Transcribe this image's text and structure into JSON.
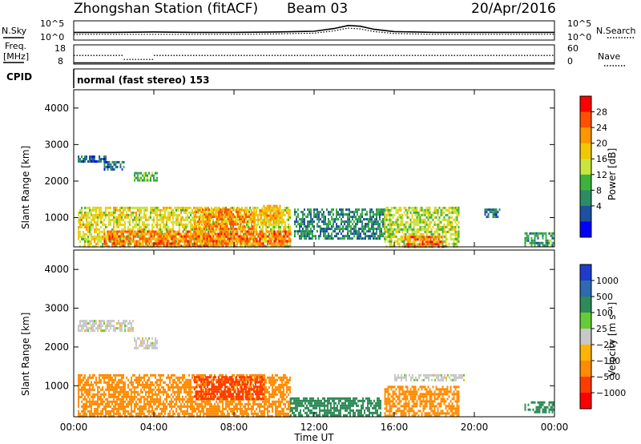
{
  "header": {
    "station": "Zhongshan Station (fitACF)",
    "beam": "Beam 03",
    "date": "20/Apr/2016"
  },
  "noise_panel": {
    "left_label": "N.Sky",
    "left_ticks": [
      "10^5",
      "10^0"
    ],
    "right_label": "N.Search",
    "right_ticks": [
      "10^5",
      "10^0"
    ],
    "sky_series": [
      [
        0,
        2.0
      ],
      [
        2,
        2.0
      ],
      [
        4,
        2.1
      ],
      [
        6,
        2.0
      ],
      [
        8,
        2.0
      ],
      [
        10,
        2.1
      ],
      [
        12,
        2.3
      ],
      [
        13,
        3.0
      ],
      [
        13.7,
        3.8
      ],
      [
        14.3,
        3.6
      ],
      [
        15,
        2.8
      ],
      [
        16,
        2.2
      ],
      [
        18,
        2.0
      ],
      [
        20,
        2.0
      ],
      [
        22,
        2.0
      ],
      [
        24,
        2.0
      ]
    ],
    "search_series": [
      [
        0,
        1.5
      ],
      [
        2,
        1.5
      ],
      [
        4,
        1.5
      ],
      [
        6,
        1.5
      ],
      [
        8,
        1.5
      ],
      [
        10,
        1.6
      ],
      [
        12,
        1.8
      ],
      [
        13,
        2.4
      ],
      [
        13.7,
        3.1
      ],
      [
        14.3,
        2.9
      ],
      [
        15,
        2.2
      ],
      [
        16,
        1.7
      ],
      [
        18,
        1.5
      ],
      [
        20,
        1.5
      ],
      [
        22,
        1.5
      ],
      [
        24,
        1.5
      ]
    ]
  },
  "freq_panel": {
    "left_label_1": "Freq.",
    "left_label_2": "[MHz]",
    "left_ticks": [
      "18",
      "8"
    ],
    "right_label": "Nave",
    "right_ticks": [
      "60",
      "0"
    ],
    "freq_segments": [
      [
        0,
        2.5,
        12.5
      ],
      [
        2.5,
        4,
        10.4
      ],
      [
        4,
        24,
        12.5
      ]
    ],
    "nave_level": 4
  },
  "cpid": {
    "label": "CPID",
    "mode_text": "normal (fast stereo) 153"
  },
  "power_panel": {
    "ylabel": "Slant Range [km]",
    "yticks": [
      "4000",
      "3000",
      "2000",
      "1000"
    ],
    "colorbar": {
      "label": "Power [dB]",
      "ticks": [
        "28",
        "24",
        "20",
        "16",
        "12",
        "8",
        "4"
      ],
      "colors": [
        "#ff0000",
        "#ff5000",
        "#ff9600",
        "#f2c800",
        "#c8e63c",
        "#3cb43c",
        "#2d8c64",
        "#1e50a0",
        "#0000ff"
      ]
    }
  },
  "velocity_panel": {
    "ylabel": "Slant Range [km]",
    "yticks": [
      "4000",
      "3000",
      "2000",
      "1000"
    ],
    "colorbar": {
      "label": "Velocity [m s⁻¹]",
      "ticks": [
        "1000",
        "500",
        "100",
        "25",
        "−25",
        "−100",
        "−500",
        "−1000"
      ],
      "colors": [
        "#1e3ccc",
        "#2d6ab0",
        "#2e8b57",
        "#66cc33",
        "#c8c8c8",
        "#ffb400",
        "#ff8c00",
        "#ff3c00",
        "#ff0000"
      ]
    }
  },
  "time_axis": {
    "xlabel": "Time UT",
    "ticks": [
      "00:00",
      "04:00",
      "08:00",
      "12:00",
      "16:00",
      "20:00",
      "00:00"
    ]
  },
  "chart_data": {
    "type": "heatmap",
    "x_range_hours": [
      0,
      24
    ],
    "y_range_km": [
      200,
      4500
    ],
    "power_regions": [
      {
        "t0": 0.2,
        "t1": 1.6,
        "r0": 2550,
        "r1": 2700,
        "value": 5
      },
      {
        "t0": 1.5,
        "t1": 2.5,
        "r0": 2300,
        "r1": 2550,
        "value": 6
      },
      {
        "t0": 3.0,
        "t1": 4.2,
        "r0": 2000,
        "r1": 2250,
        "value": 12
      },
      {
        "t0": 0.2,
        "t1": 10.8,
        "r0": 220,
        "r1": 1300,
        "value": 18
      },
      {
        "t0": 1.5,
        "t1": 10.8,
        "r0": 220,
        "r1": 650,
        "value": 26
      },
      {
        "t0": 6.0,
        "t1": 9.0,
        "r0": 700,
        "r1": 1250,
        "value": 25
      },
      {
        "t0": 9.3,
        "t1": 10.3,
        "r0": 850,
        "r1": 1350,
        "value": 22
      },
      {
        "t0": 11.0,
        "t1": 15.5,
        "r0": 400,
        "r1": 1250,
        "value": 8
      },
      {
        "t0": 15.5,
        "t1": 19.2,
        "r0": 220,
        "r1": 1300,
        "value": 16
      },
      {
        "t0": 16.5,
        "t1": 18.5,
        "r0": 220,
        "r1": 500,
        "value": 26
      },
      {
        "t0": 20.5,
        "t1": 21.3,
        "r0": 1000,
        "r1": 1250,
        "value": 6
      },
      {
        "t0": 22.5,
        "t1": 24.0,
        "r0": 250,
        "r1": 600,
        "value": 10
      }
    ],
    "velocity_regions": [
      {
        "t0": 0.2,
        "t1": 3.0,
        "r0": 2400,
        "r1": 2700,
        "value": 0
      },
      {
        "t0": 3.0,
        "t1": 4.2,
        "r0": 2000,
        "r1": 2250,
        "value": 0
      },
      {
        "t0": 0.2,
        "t1": 10.8,
        "r0": 220,
        "r1": 1300,
        "value": -200
      },
      {
        "t0": 6.0,
        "t1": 9.5,
        "r0": 650,
        "r1": 1250,
        "value": -700
      },
      {
        "t0": 10.8,
        "t1": 15.3,
        "r0": 220,
        "r1": 700,
        "value": 200
      },
      {
        "t0": 15.5,
        "t1": 19.2,
        "r0": 250,
        "r1": 1000,
        "value": -150
      },
      {
        "t0": 16.0,
        "t1": 19.5,
        "r0": 1150,
        "r1": 1300,
        "value": 0
      },
      {
        "t0": 22.5,
        "t1": 24.0,
        "r0": 300,
        "r1": 600,
        "value": 300
      }
    ]
  }
}
